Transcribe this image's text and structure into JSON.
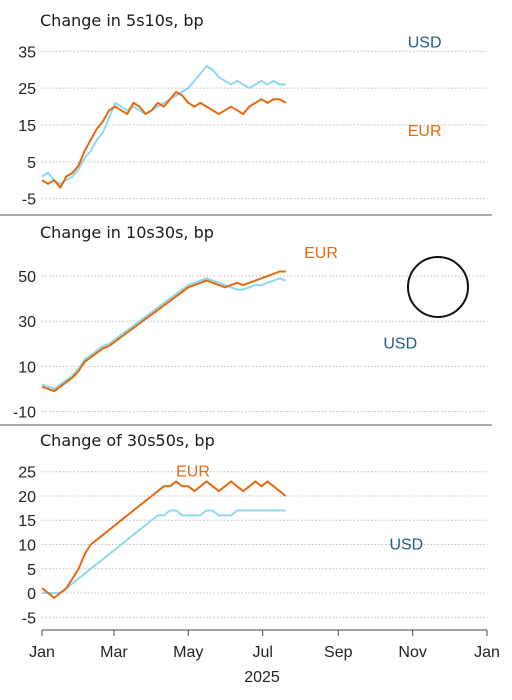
{
  "chart_data": [
    {
      "type": "line",
      "title": "Change in 5s10s, bp",
      "ylim": [
        -7,
        37
      ],
      "yticks": [
        35,
        25,
        15,
        5,
        -5
      ],
      "grid": "horizontal-dotted",
      "series": [
        {
          "name": "EUR",
          "color": "#E8680F",
          "points": [
            [
              0,
              0
            ],
            [
              5,
              -1
            ],
            [
              10,
              0
            ],
            [
              15,
              -2
            ],
            [
              20,
              1
            ],
            [
              25,
              2
            ],
            [
              30,
              4
            ],
            [
              35,
              8
            ],
            [
              40,
              11
            ],
            [
              45,
              14
            ],
            [
              50,
              16
            ],
            [
              55,
              19
            ],
            [
              60,
              20
            ],
            [
              65,
              19
            ],
            [
              70,
              18
            ],
            [
              75,
              21
            ],
            [
              80,
              20
            ],
            [
              85,
              18
            ],
            [
              90,
              19
            ],
            [
              95,
              21
            ],
            [
              100,
              20
            ],
            [
              105,
              22
            ],
            [
              110,
              24
            ],
            [
              115,
              23
            ],
            [
              120,
              21
            ],
            [
              125,
              20
            ],
            [
              130,
              21
            ],
            [
              135,
              20
            ],
            [
              140,
              19
            ],
            [
              145,
              18
            ],
            [
              150,
              19
            ],
            [
              155,
              20
            ],
            [
              160,
              19
            ],
            [
              165,
              18
            ],
            [
              170,
              20
            ],
            [
              175,
              21
            ],
            [
              180,
              22
            ],
            [
              185,
              21
            ],
            [
              190,
              22
            ],
            [
              195,
              22
            ],
            [
              200,
              21
            ]
          ]
        },
        {
          "name": "USD",
          "color": "#8ED8F0",
          "points": [
            [
              0,
              1
            ],
            [
              5,
              2
            ],
            [
              10,
              0
            ],
            [
              15,
              -1
            ],
            [
              20,
              0
            ],
            [
              25,
              1
            ],
            [
              30,
              3
            ],
            [
              35,
              6
            ],
            [
              40,
              8
            ],
            [
              45,
              11
            ],
            [
              50,
              13
            ],
            [
              55,
              17
            ],
            [
              60,
              21
            ],
            [
              65,
              20
            ],
            [
              70,
              19
            ],
            [
              75,
              20
            ],
            [
              80,
              19
            ],
            [
              85,
              18
            ],
            [
              90,
              19
            ],
            [
              95,
              20
            ],
            [
              100,
              21
            ],
            [
              105,
              22
            ],
            [
              110,
              23
            ],
            [
              115,
              24
            ],
            [
              120,
              25
            ],
            [
              125,
              27
            ],
            [
              130,
              29
            ],
            [
              135,
              31
            ],
            [
              140,
              30
            ],
            [
              145,
              28
            ],
            [
              150,
              27
            ],
            [
              155,
              26
            ],
            [
              160,
              27
            ],
            [
              165,
              26
            ],
            [
              170,
              25
            ],
            [
              175,
              26
            ],
            [
              180,
              27
            ],
            [
              185,
              26
            ],
            [
              190,
              27
            ],
            [
              195,
              26
            ],
            [
              200,
              26
            ]
          ]
        }
      ]
    },
    {
      "type": "line",
      "title": "Change in 10s30s, bp",
      "ylim": [
        -12,
        58
      ],
      "yticks": [
        50,
        30,
        10,
        -10
      ],
      "grid": "horizontal-dotted",
      "series": [
        {
          "name": "EUR",
          "color": "#E8680F",
          "points": [
            [
              0,
              1
            ],
            [
              5,
              0
            ],
            [
              10,
              -1
            ],
            [
              15,
              1
            ],
            [
              20,
              3
            ],
            [
              25,
              5
            ],
            [
              30,
              8
            ],
            [
              35,
              12
            ],
            [
              40,
              14
            ],
            [
              45,
              16
            ],
            [
              50,
              18
            ],
            [
              55,
              19
            ],
            [
              60,
              21
            ],
            [
              65,
              23
            ],
            [
              70,
              25
            ],
            [
              75,
              27
            ],
            [
              80,
              29
            ],
            [
              85,
              31
            ],
            [
              90,
              33
            ],
            [
              95,
              35
            ],
            [
              100,
              37
            ],
            [
              105,
              39
            ],
            [
              110,
              41
            ],
            [
              115,
              43
            ],
            [
              120,
              45
            ],
            [
              125,
              46
            ],
            [
              130,
              47
            ],
            [
              135,
              48
            ],
            [
              140,
              47
            ],
            [
              145,
              46
            ],
            [
              150,
              45
            ],
            [
              155,
              46
            ],
            [
              160,
              47
            ],
            [
              165,
              46
            ],
            [
              170,
              47
            ],
            [
              175,
              48
            ],
            [
              180,
              49
            ],
            [
              185,
              50
            ],
            [
              190,
              51
            ],
            [
              195,
              52
            ],
            [
              200,
              52
            ]
          ]
        },
        {
          "name": "USD",
          "color": "#8ED8F0",
          "points": [
            [
              0,
              2
            ],
            [
              5,
              1
            ],
            [
              10,
              0
            ],
            [
              15,
              2
            ],
            [
              20,
              4
            ],
            [
              25,
              6
            ],
            [
              30,
              9
            ],
            [
              35,
              13
            ],
            [
              40,
              15
            ],
            [
              45,
              17
            ],
            [
              50,
              19
            ],
            [
              55,
              20
            ],
            [
              60,
              22
            ],
            [
              65,
              24
            ],
            [
              70,
              26
            ],
            [
              75,
              28
            ],
            [
              80,
              30
            ],
            [
              85,
              32
            ],
            [
              90,
              34
            ],
            [
              95,
              36
            ],
            [
              100,
              38
            ],
            [
              105,
              40
            ],
            [
              110,
              42
            ],
            [
              115,
              44
            ],
            [
              120,
              46
            ],
            [
              125,
              47
            ],
            [
              130,
              48
            ],
            [
              135,
              49
            ],
            [
              140,
              48
            ],
            [
              145,
              47
            ],
            [
              150,
              46
            ],
            [
              155,
              45
            ],
            [
              160,
              44
            ],
            [
              165,
              44
            ],
            [
              170,
              45
            ],
            [
              175,
              46
            ],
            [
              180,
              46
            ],
            [
              185,
              47
            ],
            [
              190,
              48
            ],
            [
              195,
              49
            ],
            [
              200,
              48
            ]
          ]
        }
      ]
    },
    {
      "type": "line",
      "title": "Change of 30s50s, bp",
      "ylim": [
        -7,
        27
      ],
      "yticks": [
        25,
        20,
        15,
        10,
        5,
        0,
        -5
      ],
      "xlabels": [
        "Jan",
        "Mar",
        "May",
        "Jul",
        "Sep",
        "Nov",
        "Jan"
      ],
      "xticks": [
        0,
        59,
        120,
        181,
        243,
        304,
        365
      ],
      "xlabel": "2025",
      "grid": "horizontal-dotted",
      "series": [
        {
          "name": "EUR",
          "color": "#E8680F",
          "points": [
            [
              0,
              1
            ],
            [
              5,
              0
            ],
            [
              10,
              -1
            ],
            [
              15,
              0
            ],
            [
              20,
              1
            ],
            [
              25,
              3
            ],
            [
              30,
              5
            ],
            [
              35,
              8
            ],
            [
              40,
              10
            ],
            [
              45,
              11
            ],
            [
              50,
              12
            ],
            [
              55,
              13
            ],
            [
              60,
              14
            ],
            [
              65,
              15
            ],
            [
              70,
              16
            ],
            [
              75,
              17
            ],
            [
              80,
              18
            ],
            [
              85,
              19
            ],
            [
              90,
              20
            ],
            [
              95,
              21
            ],
            [
              100,
              22
            ],
            [
              105,
              22
            ],
            [
              110,
              23
            ],
            [
              115,
              22
            ],
            [
              120,
              22
            ],
            [
              125,
              21
            ],
            [
              130,
              22
            ],
            [
              135,
              23
            ],
            [
              140,
              22
            ],
            [
              145,
              21
            ],
            [
              150,
              22
            ],
            [
              155,
              23
            ],
            [
              160,
              22
            ],
            [
              165,
              21
            ],
            [
              170,
              22
            ],
            [
              175,
              23
            ],
            [
              180,
              22
            ],
            [
              185,
              23
            ],
            [
              190,
              22
            ],
            [
              195,
              21
            ],
            [
              200,
              20
            ]
          ]
        },
        {
          "name": "USD",
          "color": "#8ED8F0",
          "points": [
            [
              0,
              0
            ],
            [
              5,
              0
            ],
            [
              10,
              0
            ],
            [
              15,
              0
            ],
            [
              20,
              1
            ],
            [
              25,
              2
            ],
            [
              30,
              3
            ],
            [
              35,
              4
            ],
            [
              40,
              5
            ],
            [
              45,
              6
            ],
            [
              50,
              7
            ],
            [
              55,
              8
            ],
            [
              60,
              9
            ],
            [
              65,
              10
            ],
            [
              70,
              11
            ],
            [
              75,
              12
            ],
            [
              80,
              13
            ],
            [
              85,
              14
            ],
            [
              90,
              15
            ],
            [
              95,
              16
            ],
            [
              100,
              16
            ],
            [
              105,
              17
            ],
            [
              110,
              17
            ],
            [
              115,
              16
            ],
            [
              120,
              16
            ],
            [
              125,
              16
            ],
            [
              130,
              16
            ],
            [
              135,
              17
            ],
            [
              140,
              17
            ],
            [
              145,
              16
            ],
            [
              150,
              16
            ],
            [
              155,
              16
            ],
            [
              160,
              17
            ],
            [
              165,
              17
            ],
            [
              170,
              17
            ],
            [
              175,
              17
            ],
            [
              180,
              17
            ],
            [
              185,
              17
            ],
            [
              190,
              17
            ],
            [
              195,
              17
            ],
            [
              200,
              17
            ]
          ]
        }
      ]
    }
  ]
}
